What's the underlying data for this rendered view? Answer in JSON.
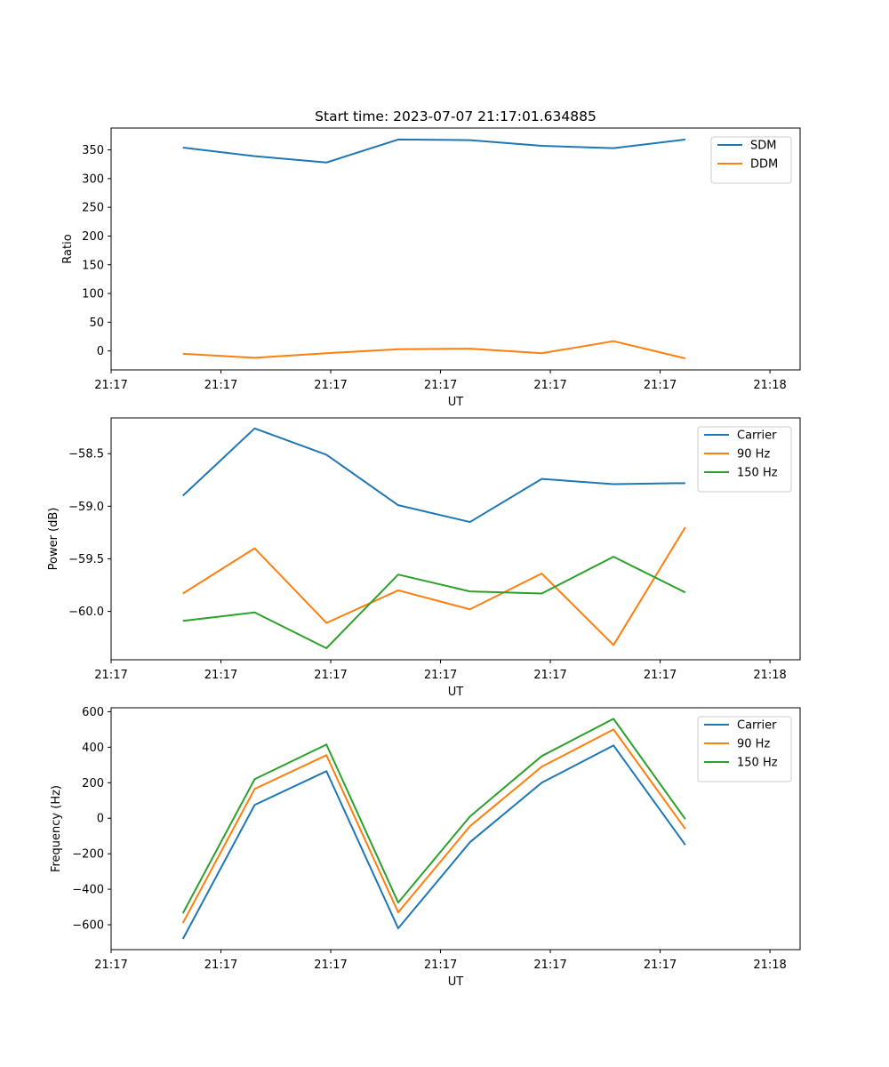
{
  "figure": {
    "title": "Start time: 2023-07-07 21:17:01.634885"
  },
  "colors": {
    "blue": "#1f77b4",
    "orange": "#ff7f0e",
    "green": "#2ca02c"
  },
  "chart_data": [
    {
      "type": "line",
      "title": "Start time: 2023-07-07 21:17:01.634885",
      "xlabel": "UT",
      "ylabel": "Ratio",
      "x_index": [
        1,
        2,
        3,
        4,
        5,
        6,
        7,
        8
      ],
      "xlim": [
        0,
        9.6
      ],
      "x_ticks": [
        0,
        1.53,
        3.06,
        4.59,
        6.12,
        7.65,
        9.18
      ],
      "x_tick_labels": [
        "21:17",
        "21:17",
        "21:17",
        "21:17",
        "21:17",
        "21:17",
        "21:18"
      ],
      "ylim": [
        -33,
        388
      ],
      "y_ticks": [
        0,
        50,
        100,
        150,
        200,
        250,
        300,
        350
      ],
      "y_tick_labels": [
        "0",
        "50",
        "100",
        "150",
        "200",
        "250",
        "300",
        "350"
      ],
      "legend_position": "top-right",
      "series": [
        {
          "name": "SDM",
          "color": "#1f77b4",
          "values": [
            354,
            339,
            328,
            368,
            367,
            357,
            353,
            368
          ]
        },
        {
          "name": "DDM",
          "color": "#ff7f0e",
          "values": [
            -5,
            -12,
            -4,
            3,
            4,
            -4,
            17,
            -13
          ]
        }
      ]
    },
    {
      "type": "line",
      "title": "",
      "xlabel": "UT",
      "ylabel": "Power (dB)",
      "x_index": [
        1,
        2,
        3,
        4,
        5,
        6,
        7,
        8
      ],
      "xlim": [
        0,
        9.6
      ],
      "x_ticks": [
        0,
        1.53,
        3.06,
        4.59,
        6.12,
        7.65,
        9.18
      ],
      "x_tick_labels": [
        "21:17",
        "21:17",
        "21:17",
        "21:17",
        "21:17",
        "21:17",
        "21:18"
      ],
      "ylim": [
        -60.46,
        -58.16
      ],
      "y_ticks": [
        -60.0,
        -59.5,
        -59.0,
        -58.5
      ],
      "y_tick_labels": [
        "−60.0",
        "−59.5",
        "−59.0",
        "−58.5"
      ],
      "legend_position": "top-right",
      "series": [
        {
          "name": "Carrier",
          "color": "#1f77b4",
          "values": [
            -58.9,
            -58.26,
            -58.51,
            -58.99,
            -59.15,
            -58.74,
            -58.79,
            -58.78
          ]
        },
        {
          "name": "90 Hz",
          "color": "#ff7f0e",
          "values": [
            -59.83,
            -59.4,
            -60.11,
            -59.8,
            -59.98,
            -59.64,
            -60.32,
            -59.2
          ]
        },
        {
          "name": "150 Hz",
          "color": "#2ca02c",
          "values": [
            -60.09,
            -60.01,
            -60.35,
            -59.65,
            -59.81,
            -59.83,
            -59.48,
            -59.82
          ]
        }
      ]
    },
    {
      "type": "line",
      "title": "",
      "xlabel": "UT",
      "ylabel": "Frequency (Hz)",
      "x_index": [
        1,
        2,
        3,
        4,
        5,
        6,
        7,
        8
      ],
      "xlim": [
        0,
        9.6
      ],
      "x_ticks": [
        0,
        1.53,
        3.06,
        4.59,
        6.12,
        7.65,
        9.18
      ],
      "x_tick_labels": [
        "21:17",
        "21:17",
        "21:17",
        "21:17",
        "21:17",
        "21:17",
        "21:18"
      ],
      "ylim": [
        -740,
        622
      ],
      "y_ticks": [
        -600,
        -400,
        -200,
        0,
        200,
        400,
        600
      ],
      "y_tick_labels": [
        "−600",
        "−400",
        "−200",
        "0",
        "200",
        "400",
        "600"
      ],
      "legend_position": "top-right",
      "series": [
        {
          "name": "Carrier",
          "color": "#1f77b4",
          "values": [
            -680,
            75,
            265,
            -620,
            -135,
            200,
            410,
            -150
          ]
        },
        {
          "name": "90 Hz",
          "color": "#ff7f0e",
          "values": [
            -590,
            165,
            355,
            -530,
            -45,
            290,
            500,
            -60
          ]
        },
        {
          "name": "150 Hz",
          "color": "#2ca02c",
          "values": [
            -535,
            220,
            415,
            -475,
            10,
            350,
            560,
            -5
          ]
        }
      ]
    }
  ]
}
